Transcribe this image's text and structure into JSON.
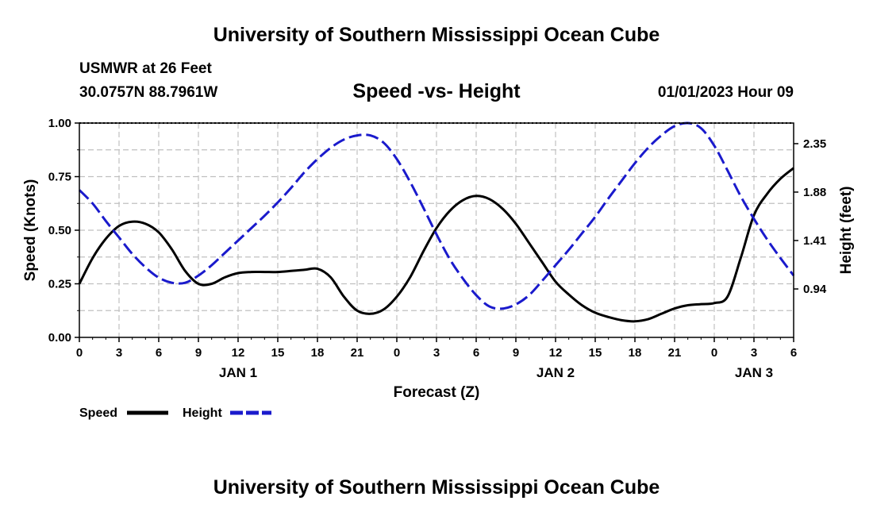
{
  "page": {
    "title": "University of Southern Mississippi Ocean Cube",
    "station": "USMWR at 26 Feet",
    "coordinates": "30.0757N  88.7961W",
    "datetime": "01/01/2023 Hour 09",
    "footer_title": "University of Southern Mississippi Ocean Cube"
  },
  "colors": {
    "speed": "#000000",
    "height": "#1a1acc",
    "grid": "#c0c0c0"
  },
  "chart_data": {
    "type": "line",
    "title": "Speed -vs- Height",
    "xlabel": "Forecast (Z)",
    "ylabel": "Speed (Knots)",
    "y2label": "Height (feet)",
    "xlim": [
      0,
      54
    ],
    "ylim": [
      0,
      1
    ],
    "y2lim": [
      0.47,
      2.55
    ],
    "xticks": [
      0,
      3,
      6,
      9,
      12,
      15,
      18,
      21,
      24,
      27,
      30,
      33,
      36,
      39,
      42,
      45,
      48,
      51,
      54
    ],
    "xtick_labels": [
      "0",
      "3",
      "6",
      "9",
      "12",
      "15",
      "18",
      "21",
      "0",
      "3",
      "6",
      "9",
      "12",
      "15",
      "18",
      "21",
      "0",
      "3",
      "6"
    ],
    "yticks": [
      0,
      0.25,
      0.5,
      0.75,
      1.0
    ],
    "ytick_labels": [
      "0.00",
      "0.25",
      "0.50",
      "0.75",
      "1.00"
    ],
    "y2ticks": [
      0.94,
      1.41,
      1.88,
      2.35
    ],
    "y2tick_labels": [
      "0.94",
      "1.41",
      "1.88",
      "2.35"
    ],
    "day_labels": [
      {
        "x": 12,
        "label": "JAN 1"
      },
      {
        "x": 36,
        "label": "JAN 2"
      },
      {
        "x": 51,
        "label": "JAN 3"
      }
    ],
    "grid": true,
    "legend_position": "bottom-left",
    "series": [
      {
        "name": "Speed",
        "axis": "left",
        "style": "solid",
        "x": [
          0,
          1,
          2,
          3,
          4,
          5,
          6,
          7,
          8,
          9,
          10,
          11,
          12,
          13,
          14,
          15,
          16,
          17,
          18,
          19,
          20,
          21,
          22,
          23,
          24,
          25,
          26,
          27,
          28,
          29,
          30,
          31,
          32,
          33,
          34,
          35,
          36,
          37,
          38,
          39,
          40,
          41,
          42,
          43,
          44,
          45,
          46,
          47,
          48,
          49,
          50,
          51,
          52,
          53,
          54
        ],
        "values": [
          0.25,
          0.37,
          0.46,
          0.52,
          0.54,
          0.53,
          0.49,
          0.41,
          0.31,
          0.25,
          0.25,
          0.28,
          0.3,
          0.305,
          0.305,
          0.305,
          0.31,
          0.315,
          0.32,
          0.28,
          0.19,
          0.125,
          0.11,
          0.13,
          0.19,
          0.28,
          0.4,
          0.51,
          0.59,
          0.64,
          0.66,
          0.645,
          0.6,
          0.53,
          0.44,
          0.35,
          0.26,
          0.2,
          0.15,
          0.115,
          0.095,
          0.08,
          0.075,
          0.085,
          0.11,
          0.135,
          0.15,
          0.155,
          0.16,
          0.19,
          0.37,
          0.57,
          0.67,
          0.74,
          0.79
        ]
      },
      {
        "name": "Height",
        "axis": "right",
        "style": "dashed",
        "x": [
          0,
          1,
          2,
          3,
          4,
          5,
          6,
          7,
          8,
          9,
          10,
          11,
          12,
          13,
          14,
          15,
          16,
          17,
          18,
          19,
          20,
          21,
          22,
          23,
          24,
          25,
          26,
          27,
          28,
          29,
          30,
          31,
          32,
          33,
          34,
          35,
          36,
          37,
          38,
          39,
          40,
          41,
          42,
          43,
          44,
          45,
          46,
          47,
          48,
          49,
          50,
          51,
          52,
          53,
          54
        ],
        "values": [
          1.9,
          1.77,
          1.6,
          1.44,
          1.28,
          1.15,
          1.05,
          1.0,
          1.0,
          1.07,
          1.17,
          1.29,
          1.41,
          1.53,
          1.65,
          1.78,
          1.92,
          2.07,
          2.2,
          2.31,
          2.39,
          2.43,
          2.43,
          2.36,
          2.2,
          1.98,
          1.73,
          1.47,
          1.23,
          1.04,
          0.88,
          0.77,
          0.75,
          0.79,
          0.88,
          1.02,
          1.17,
          1.32,
          1.48,
          1.64,
          1.82,
          1.99,
          2.16,
          2.31,
          2.43,
          2.52,
          2.55,
          2.5,
          2.33,
          2.09,
          1.84,
          1.62,
          1.42,
          1.24,
          1.07
        ]
      }
    ]
  }
}
